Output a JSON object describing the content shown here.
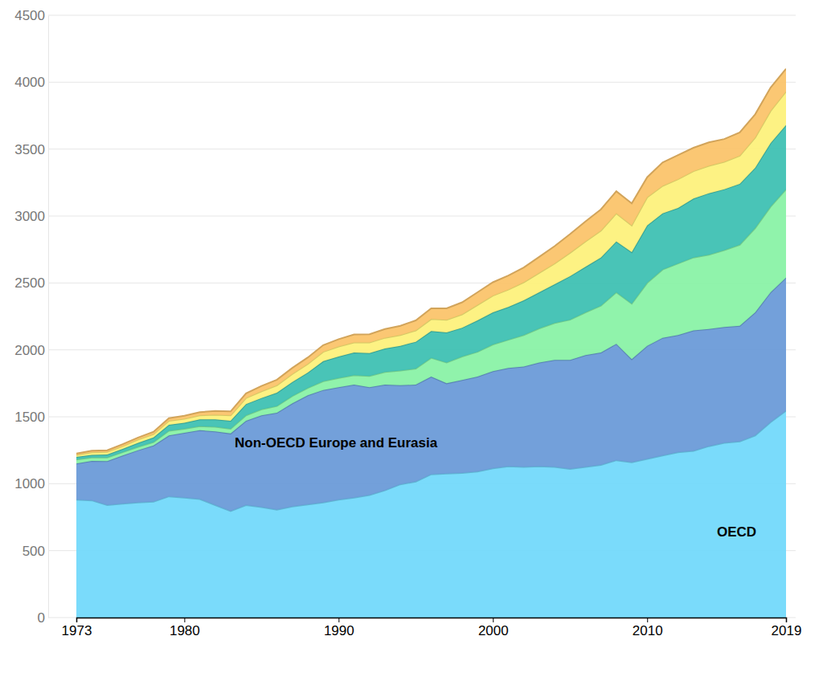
{
  "chart_data": {
    "type": "area",
    "stacked": true,
    "grid": true,
    "x": [
      1973,
      1974,
      1975,
      1976,
      1977,
      1978,
      1979,
      1980,
      1981,
      1982,
      1983,
      1984,
      1985,
      1986,
      1987,
      1988,
      1989,
      1990,
      1991,
      1992,
      1993,
      1994,
      1995,
      1996,
      1997,
      1998,
      1999,
      2000,
      2001,
      2002,
      2003,
      2004,
      2005,
      2006,
      2007,
      2008,
      2009,
      2010,
      2011,
      2012,
      2013,
      2014,
      2015,
      2016,
      2017,
      2018,
      2019
    ],
    "xlim": [
      1973,
      2019
    ],
    "xticks": [
      1973,
      1980,
      1990,
      2000,
      2010,
      2019
    ],
    "ylim": [
      0,
      4500
    ],
    "yticks": [
      0,
      500,
      1000,
      1500,
      2000,
      2500,
      3000,
      3500,
      4000,
      4500
    ],
    "series": [
      {
        "name": "OECD",
        "color": "#73d9fb",
        "values": [
          880,
          875,
          840,
          850,
          860,
          865,
          905,
          895,
          885,
          840,
          795,
          840,
          825,
          805,
          830,
          845,
          860,
          880,
          895,
          915,
          950,
          995,
          1015,
          1070,
          1075,
          1080,
          1090,
          1115,
          1130,
          1125,
          1130,
          1125,
          1110,
          1125,
          1140,
          1175,
          1160,
          1185,
          1210,
          1235,
          1245,
          1280,
          1305,
          1315,
          1360,
          1460,
          1545
        ]
      },
      {
        "name": "Non-OECD Europe and Eurasia",
        "color": "#6b9bd8",
        "values": [
          270,
          295,
          328,
          360,
          390,
          420,
          455,
          485,
          515,
          550,
          580,
          630,
          685,
          725,
          770,
          815,
          840,
          840,
          845,
          805,
          790,
          740,
          725,
          730,
          675,
          695,
          710,
          725,
          735,
          750,
          775,
          800,
          815,
          835,
          840,
          870,
          770,
          845,
          880,
          875,
          900,
          875,
          865,
          865,
          920,
          970,
          995
        ]
      },
      {
        "color": "#8af2a6",
        "values": [
          30,
          25,
          27,
          25,
          25,
          25,
          35,
          30,
          30,
          35,
          35,
          40,
          45,
          50,
          55,
          55,
          65,
          70,
          70,
          85,
          95,
          110,
          120,
          140,
          155,
          175,
          185,
          200,
          210,
          235,
          255,
          275,
          300,
          320,
          350,
          385,
          415,
          470,
          510,
          535,
          545,
          555,
          575,
          605,
          630,
          640,
          660
        ]
      },
      {
        "color": "#3fc1b3",
        "values": [
          20,
          20,
          23,
          25,
          30,
          35,
          45,
          45,
          50,
          55,
          60,
          85,
          85,
          100,
          105,
          115,
          150,
          160,
          170,
          170,
          175,
          185,
          200,
          200,
          225,
          215,
          235,
          240,
          245,
          260,
          270,
          290,
          325,
          340,
          360,
          380,
          385,
          430,
          420,
          415,
          440,
          460,
          455,
          455,
          450,
          475,
          480
        ]
      },
      {
        "color": "#fdf17c",
        "values": [
          15,
          20,
          20,
          20,
          25,
          25,
          30,
          30,
          30,
          35,
          40,
          45,
          50,
          55,
          60,
          65,
          70,
          75,
          75,
          80,
          80,
          80,
          85,
          90,
          95,
          100,
          115,
          125,
          130,
          135,
          145,
          155,
          175,
          190,
          200,
          210,
          200,
          210,
          205,
          215,
          205,
          205,
          205,
          210,
          225,
          240,
          250
        ]
      },
      {
        "color": "#fbc46c",
        "values": [
          10,
          12,
          12,
          15,
          15,
          18,
          20,
          22,
          25,
          28,
          30,
          35,
          40,
          42,
          45,
          48,
          50,
          55,
          60,
          62,
          65,
          70,
          75,
          80,
          85,
          90,
          95,
          100,
          105,
          110,
          120,
          130,
          140,
          150,
          160,
          165,
          165,
          150,
          175,
          180,
          175,
          175,
          170,
          175,
          175,
          175,
          170
        ]
      }
    ]
  }
}
